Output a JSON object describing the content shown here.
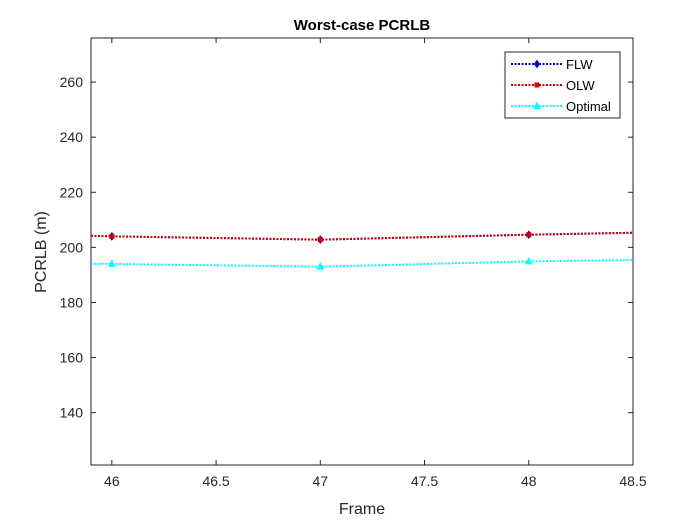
{
  "chart_data": {
    "type": "line",
    "title": "Worst-case PCRLB",
    "xlabel": "Frame",
    "ylabel": "PCRLB (m)",
    "xlim": [
      45.9,
      48.5
    ],
    "ylim": [
      121,
      276
    ],
    "xticks": [
      46,
      46.5,
      47,
      47.5,
      48,
      48.5
    ],
    "xtick_labels": [
      "46",
      "46.5",
      "47",
      "47.5",
      "48",
      "48.5"
    ],
    "yticks": [
      140,
      160,
      180,
      200,
      220,
      240,
      260
    ],
    "ytick_labels": [
      "140",
      "160",
      "180",
      "200",
      "220",
      "240",
      "260"
    ],
    "grid": false,
    "legend_position": "top-right",
    "x": [
      45.9,
      46,
      47,
      48,
      48.5
    ],
    "series": [
      {
        "name": "FLW",
        "color": "#0000cc",
        "marker": "diamond",
        "values": [
          204.2,
          204.0,
          202.8,
          204.6,
          205.3
        ]
      },
      {
        "name": "OLW",
        "color": "#cc0000",
        "marker": "square",
        "values": [
          204.2,
          204.0,
          202.8,
          204.6,
          205.3
        ]
      },
      {
        "name": "Optimal",
        "color": "#00ffff",
        "marker": "triangle",
        "values": [
          194.0,
          194.0,
          193.0,
          194.9,
          195.4
        ]
      }
    ],
    "marker_x": [
      46,
      47,
      48
    ]
  }
}
